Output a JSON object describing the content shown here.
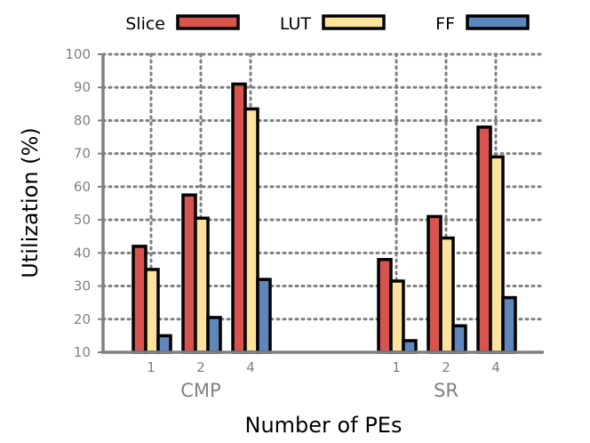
{
  "chart_data": {
    "type": "bar",
    "xlabel": "Number of PEs",
    "ylabel": "Utilization (%)",
    "ylim": [
      10,
      100
    ],
    "yticks": [
      10,
      20,
      30,
      40,
      50,
      60,
      70,
      80,
      90,
      100
    ],
    "grid": true,
    "legend_position": "top",
    "groups": [
      {
        "name": "CMP",
        "categories": [
          "1",
          "2",
          "4"
        ]
      },
      {
        "name": "SR",
        "categories": [
          "1",
          "2",
          "4"
        ]
      }
    ],
    "series": [
      {
        "name": "Slice",
        "color": "#d9534f",
        "values": [
          [
            42,
            57.5,
            91
          ],
          [
            38,
            51,
            78
          ]
        ]
      },
      {
        "name": "LUT",
        "color": "#fde39b",
        "values": [
          [
            35,
            50.5,
            83.5
          ],
          [
            31.5,
            44.5,
            69
          ]
        ]
      },
      {
        "name": "FF",
        "color": "#5f87bd",
        "values": [
          [
            15,
            20.5,
            32
          ],
          [
            13.5,
            18,
            26.5
          ]
        ]
      }
    ]
  }
}
